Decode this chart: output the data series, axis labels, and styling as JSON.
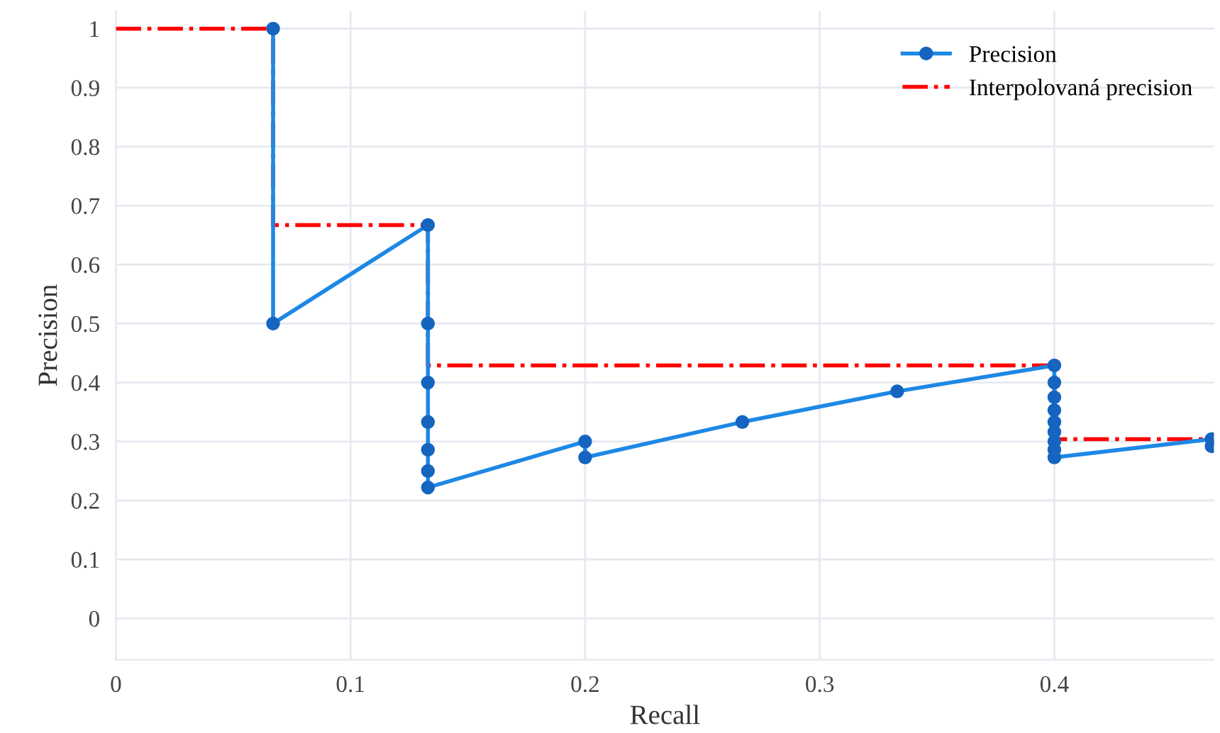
{
  "chart_data": {
    "type": "line",
    "xlabel": "Recall",
    "ylabel": "Precision",
    "series": [
      {
        "name": "Precision",
        "color": "#1e88e5",
        "marker": "circle",
        "line_style": "solid",
        "x": [
          0.067,
          0.067,
          0.133,
          0.133,
          0.133,
          0.133,
          0.133,
          0.133,
          0.133,
          0.2,
          0.2,
          0.267,
          0.333,
          0.4,
          0.4,
          0.4,
          0.4,
          0.4,
          0.4,
          0.4,
          0.4,
          0.4,
          0.467,
          0.467
        ],
        "values": [
          1,
          0.5,
          0.667,
          0.5,
          0.4,
          0.333,
          0.286,
          0.25,
          0.222,
          0.3,
          0.273,
          0.333,
          0.385,
          0.429,
          0.4,
          0.375,
          0.353,
          0.333,
          0.316,
          0.3,
          0.286,
          0.273,
          0.304,
          0.292
        ]
      },
      {
        "name": "Interpolovaná precision",
        "color": "#ff0000",
        "marker": "none",
        "line_style": "dashdot",
        "x": [
          0,
          0.067,
          0.067,
          0.133,
          0.133,
          0.4,
          0.4,
          0.467
        ],
        "values": [
          1,
          1,
          0.667,
          0.667,
          0.429,
          0.429,
          0.304,
          0.304
        ]
      }
    ],
    "xlim": [
      0,
      0.468
    ],
    "xticks": [
      0,
      0.1,
      0.2,
      0.3,
      0.4
    ],
    "ylim": [
      -0.07,
      1.03
    ],
    "yticks": [
      0,
      0.1,
      0.2,
      0.3,
      0.4,
      0.5,
      0.6,
      0.7,
      0.8,
      0.9,
      1
    ],
    "grid": true,
    "legend": "top right"
  }
}
